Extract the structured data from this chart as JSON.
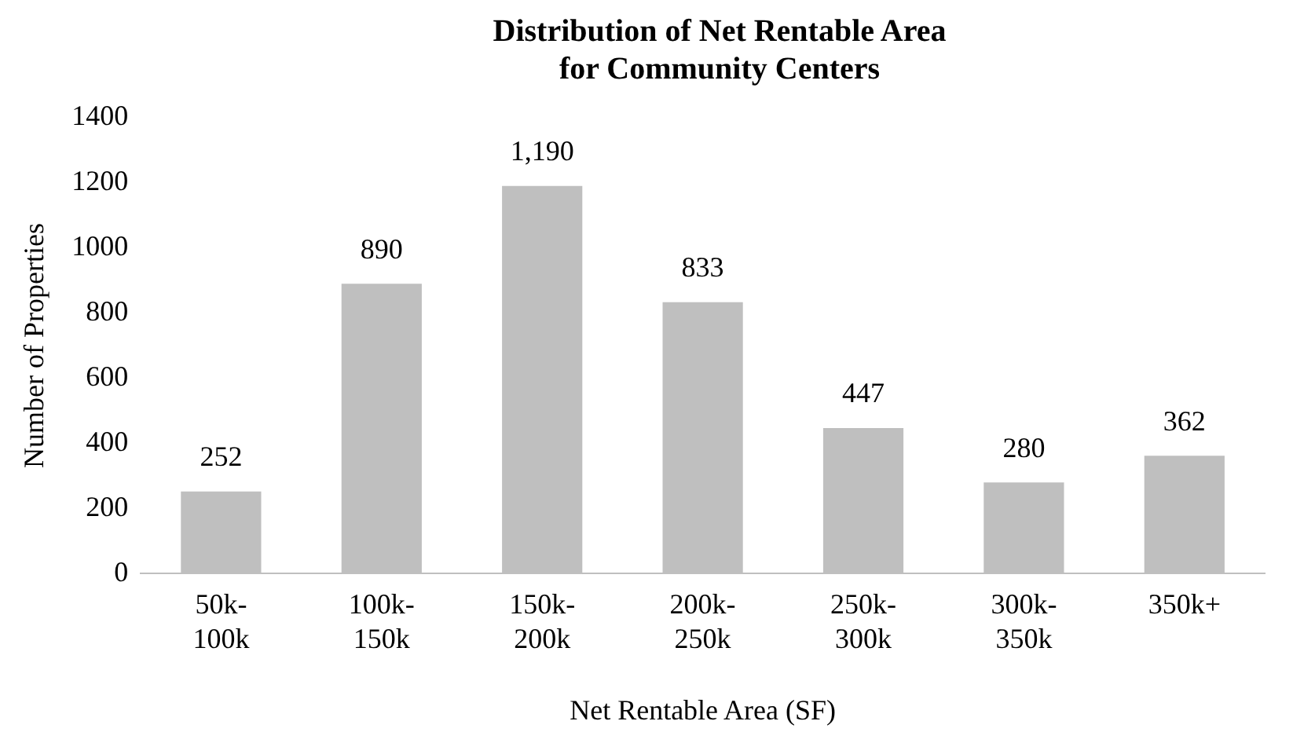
{
  "chart_data": {
    "type": "bar",
    "title": "Distribution of Net Rentable Area for Community Centers",
    "xlabel": "Net Rentable Area (SF)",
    "ylabel": "Number of Properties",
    "categories": [
      "50k-100k",
      "100k-150k",
      "150k-200k",
      "200k-250k",
      "250k-300k",
      "300k-350k",
      "350k+"
    ],
    "values": [
      252,
      890,
      1190,
      833,
      447,
      280,
      362
    ],
    "value_labels": [
      "252",
      "890",
      "1,190",
      "833",
      "447",
      "280",
      "362"
    ],
    "color": "#bfbfbf",
    "ylim": [
      0,
      1400
    ],
    "yticks": [
      0,
      200,
      400,
      600,
      800,
      1000,
      1200,
      1400
    ],
    "grid": false,
    "legend": false
  }
}
